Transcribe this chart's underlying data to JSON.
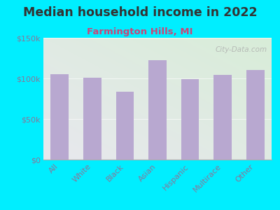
{
  "title": "Median household income in 2022",
  "subtitle": "Farmington Hills, MI",
  "categories": [
    "All",
    "White",
    "Black",
    "Asian",
    "Hispanic",
    "Multirace",
    "Other"
  ],
  "values": [
    105000,
    101000,
    84000,
    122000,
    99000,
    104000,
    110000
  ],
  "bar_color": "#b8a8d0",
  "background_color": "#00eeff",
  "gradient_top_left": "#d8edd8",
  "gradient_bottom_right": "#e8e8ee",
  "title_color": "#333333",
  "subtitle_color": "#cc4477",
  "tick_label_color": "#887799",
  "ytick_labels": [
    "$0",
    "$50k",
    "$100k",
    "$150k"
  ],
  "ytick_values": [
    0,
    50000,
    100000,
    150000
  ],
  "ylim": [
    0,
    150000
  ],
  "watermark": "City-Data.com",
  "title_fontsize": 12.5,
  "subtitle_fontsize": 9.5,
  "tick_fontsize": 8
}
